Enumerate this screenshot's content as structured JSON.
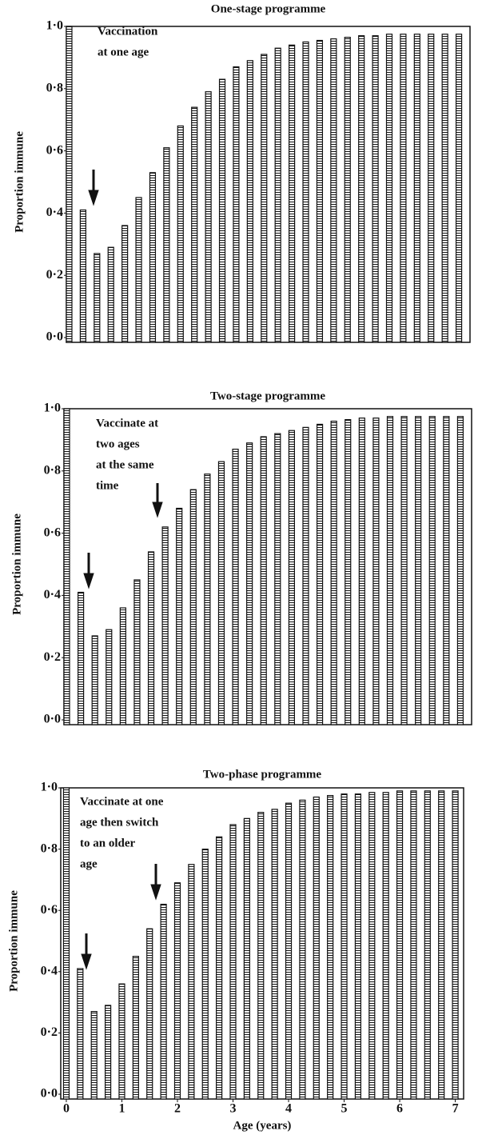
{
  "chart_data": [
    {
      "type": "bar",
      "title": "One-stage programme",
      "ylabel": "Proportion immune",
      "annotation": [
        "Vaccination",
        "at one age"
      ],
      "x": [
        0,
        0.25,
        0.5,
        0.75,
        1,
        1.25,
        1.5,
        1.75,
        2,
        2.25,
        2.5,
        2.75,
        3,
        3.25,
        3.5,
        3.75,
        4,
        4.25,
        4.5,
        4.75,
        5,
        5.25,
        5.5,
        5.75,
        6,
        6.25,
        6.5,
        6.75,
        7
      ],
      "values": [
        1.0,
        0.41,
        0.27,
        0.29,
        0.36,
        0.45,
        0.53,
        0.61,
        0.68,
        0.74,
        0.79,
        0.83,
        0.87,
        0.89,
        0.91,
        0.93,
        0.94,
        0.95,
        0.955,
        0.96,
        0.965,
        0.97,
        0.97,
        0.975,
        0.975,
        0.975,
        0.975,
        0.975,
        0.975
      ],
      "xlim": [
        -0.05,
        7.2
      ],
      "ylim": [
        0,
        1
      ],
      "yticks": [
        {
          "value": 0,
          "label": "0·0"
        },
        {
          "value": 0.2,
          "label": "0·2"
        },
        {
          "value": 0.4,
          "label": "0·4"
        },
        {
          "value": 0.6,
          "label": "0·6"
        },
        {
          "value": 0.8,
          "label": "0·8"
        },
        {
          "value": 1,
          "label": "1·0"
        }
      ]
    },
    {
      "type": "bar",
      "title": "Two-stage programme",
      "ylabel": "Proportion immune",
      "annotation": [
        "Vaccinate at",
        "two ages",
        "at the same",
        "time"
      ],
      "x": [
        0,
        0.25,
        0.5,
        0.75,
        1,
        1.25,
        1.5,
        1.75,
        2,
        2.25,
        2.5,
        2.75,
        3,
        3.25,
        3.5,
        3.75,
        4,
        4.25,
        4.5,
        4.75,
        5,
        5.25,
        5.5,
        5.75,
        6,
        6.25,
        6.5,
        6.75,
        7
      ],
      "values": [
        1.0,
        0.41,
        0.27,
        0.29,
        0.36,
        0.45,
        0.54,
        0.62,
        0.68,
        0.74,
        0.79,
        0.83,
        0.87,
        0.89,
        0.91,
        0.92,
        0.93,
        0.94,
        0.95,
        0.96,
        0.965,
        0.97,
        0.97,
        0.975,
        0.975,
        0.975,
        0.975,
        0.975,
        0.975
      ],
      "xlim": [
        -0.05,
        7.2
      ],
      "ylim": [
        0,
        1
      ],
      "yticks": [
        {
          "value": 0,
          "label": "0·0"
        },
        {
          "value": 0.2,
          "label": "0·2"
        },
        {
          "value": 0.4,
          "label": "0·4"
        },
        {
          "value": 0.6,
          "label": "0·6"
        },
        {
          "value": 0.8,
          "label": "0·8"
        },
        {
          "value": 1,
          "label": "1·0"
        }
      ]
    },
    {
      "type": "bar",
      "title": "Two-phase programme",
      "ylabel": "Proportion immune",
      "xlabel": "Age (years)",
      "annotation": [
        "Vaccinate at one",
        "age then switch",
        "to an older",
        "age"
      ],
      "x": [
        0,
        0.25,
        0.5,
        0.75,
        1,
        1.25,
        1.5,
        1.75,
        2,
        2.25,
        2.5,
        2.75,
        3,
        3.25,
        3.5,
        3.75,
        4,
        4.25,
        4.5,
        4.75,
        5,
        5.25,
        5.5,
        5.75,
        6,
        6.25,
        6.5,
        6.75,
        7
      ],
      "values": [
        1.0,
        0.41,
        0.27,
        0.29,
        0.36,
        0.45,
        0.54,
        0.62,
        0.69,
        0.75,
        0.8,
        0.84,
        0.88,
        0.9,
        0.92,
        0.93,
        0.95,
        0.96,
        0.97,
        0.975,
        0.98,
        0.98,
        0.985,
        0.985,
        0.99,
        0.99,
        0.99,
        0.99,
        0.99
      ],
      "xlim": [
        -0.1,
        7.15
      ],
      "ylim": [
        0,
        1
      ],
      "xticks": [
        0,
        1,
        2,
        3,
        4,
        5,
        6,
        7
      ],
      "yticks": [
        {
          "value": 0,
          "label": "0·0"
        },
        {
          "value": 0.2,
          "label": "0·2"
        },
        {
          "value": 0.4,
          "label": "0·4"
        },
        {
          "value": 0.6,
          "label": "0·6"
        },
        {
          "value": 0.8,
          "label": "0·8"
        },
        {
          "value": 1,
          "label": "1·0"
        }
      ]
    }
  ]
}
